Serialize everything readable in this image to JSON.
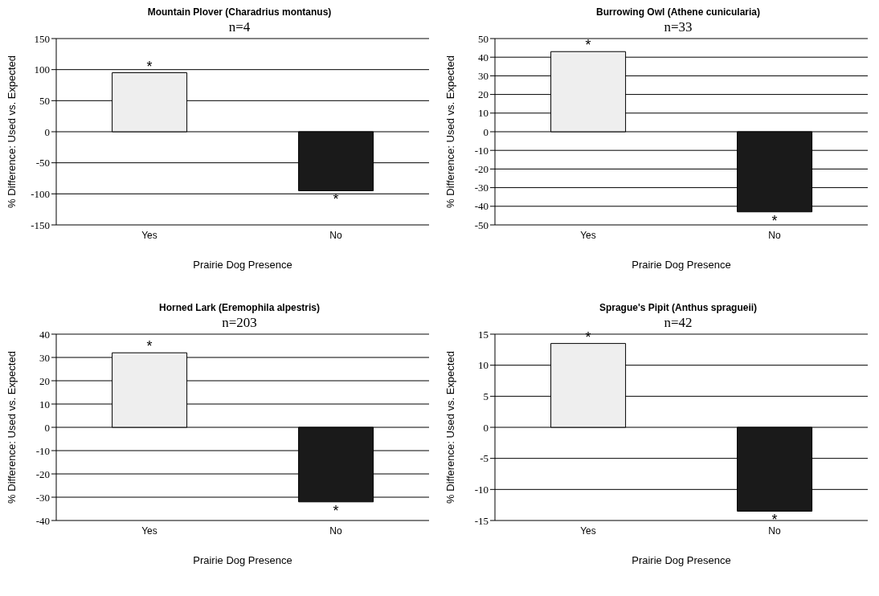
{
  "chart_data": [
    {
      "type": "bar",
      "title": "Mountain Plover (Charadrius montanus)",
      "subtitle": "n=4",
      "xlabel": "Prairie Dog Presence",
      "ylabel": "% Difference: Used vs. Expected",
      "categories": [
        "Yes",
        "No"
      ],
      "values": [
        95,
        -95
      ],
      "colors": [
        "#eeeeee",
        "#1a1a1a"
      ],
      "ylim": [
        -150,
        150
      ],
      "yticks": [
        -150,
        -100,
        -50,
        0,
        50,
        100,
        150
      ],
      "grid": "y",
      "annotations": [
        {
          "text": "*",
          "x": "Yes",
          "y": 95
        },
        {
          "text": "*",
          "x": "No",
          "y": -95
        }
      ]
    },
    {
      "type": "bar",
      "title": "Burrowing Owl (Athene cunicularia)",
      "subtitle": "n=33",
      "xlabel": "Prairie Dog Presence",
      "ylabel": "% Difference: Used vs. Expected",
      "categories": [
        "Yes",
        "No"
      ],
      "values": [
        43,
        -43
      ],
      "colors": [
        "#eeeeee",
        "#1a1a1a"
      ],
      "ylim": [
        -50,
        50
      ],
      "yticks": [
        -50,
        -40,
        -30,
        -20,
        -10,
        0,
        10,
        20,
        30,
        40,
        50
      ],
      "grid": "y",
      "annotations": [
        {
          "text": "*",
          "x": "Yes",
          "y": 43
        },
        {
          "text": "*",
          "x": "No",
          "y": -43
        }
      ]
    },
    {
      "type": "bar",
      "title": "Horned Lark (Eremophila alpestris)",
      "subtitle": "n=203",
      "xlabel": "Prairie Dog Presence",
      "ylabel": "% Difference: Used vs. Expected",
      "categories": [
        "Yes",
        "No"
      ],
      "values": [
        32,
        -32
      ],
      "colors": [
        "#eeeeee",
        "#1a1a1a"
      ],
      "ylim": [
        -40,
        40
      ],
      "yticks": [
        -40,
        -30,
        -20,
        -10,
        0,
        10,
        20,
        30,
        40
      ],
      "grid": "y",
      "annotations": [
        {
          "text": "*",
          "x": "Yes",
          "y": 32
        },
        {
          "text": "*",
          "x": "No",
          "y": -32
        }
      ]
    },
    {
      "type": "bar",
      "title": "Sprague's Pipit (Anthus spragueii)",
      "subtitle": "n=42",
      "xlabel": "Prairie Dog Presence",
      "ylabel": "% Difference: Used vs. Expected",
      "categories": [
        "Yes",
        "No"
      ],
      "values": [
        13.5,
        -13.5
      ],
      "colors": [
        "#eeeeee",
        "#1a1a1a"
      ],
      "ylim": [
        -15,
        15
      ],
      "yticks": [
        -15,
        -10,
        -5,
        0,
        5,
        10,
        15
      ],
      "grid": "y",
      "annotations": [
        {
          "text": "*",
          "x": "Yes",
          "y": 13.5
        },
        {
          "text": "*",
          "x": "No",
          "y": -13.5
        }
      ]
    }
  ]
}
